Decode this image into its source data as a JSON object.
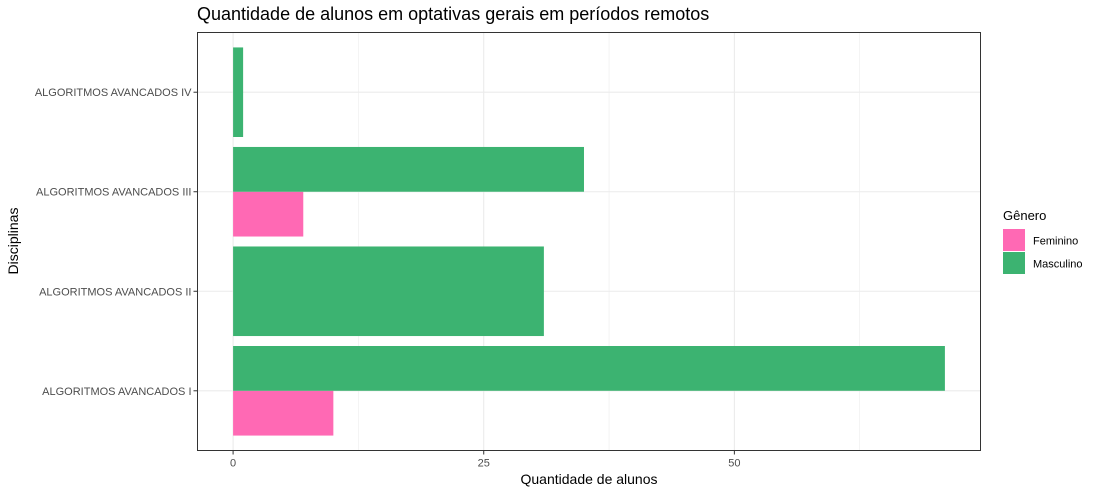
{
  "chart_data": {
    "type": "bar",
    "orientation": "horizontal",
    "title": "Quantidade de alunos em optativas gerais em períodos remotos",
    "xlabel": "Quantidade de alunos",
    "ylabel": "Disciplinas",
    "categories": [
      "ALGORITMOS AVANCADOS I",
      "ALGORITMOS AVANCADOS II",
      "ALGORITMOS AVANCADOS III",
      "ALGORITMOS AVANCADOS IV"
    ],
    "series": [
      {
        "name": "Feminino",
        "color": "#FF69B4",
        "values": [
          10,
          null,
          7,
          null
        ]
      },
      {
        "name": "Masculino",
        "color": "#3CB371",
        "values": [
          71,
          31,
          35,
          1
        ]
      }
    ],
    "xticks": [
      "0",
      "25",
      "50"
    ],
    "xlim": [
      -3.55,
      74.55
    ],
    "grid": true,
    "legend": {
      "title": "Gênero",
      "position": "right"
    }
  }
}
